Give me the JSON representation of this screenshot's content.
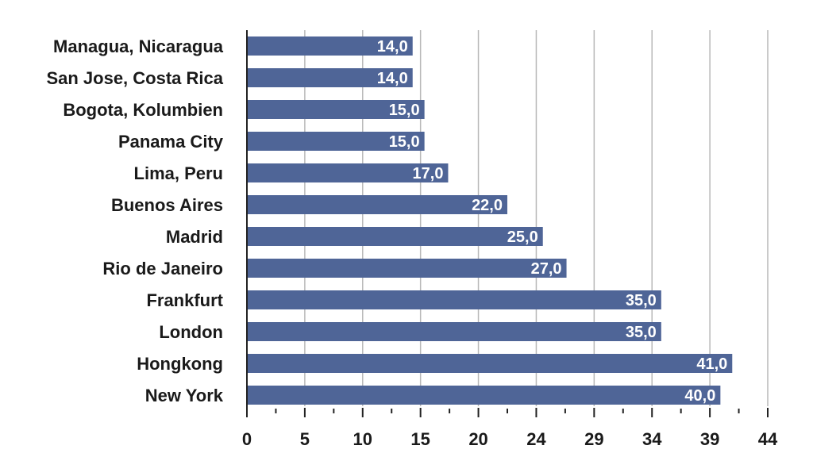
{
  "chart_data": {
    "type": "bar",
    "orientation": "horizontal",
    "categories": [
      "Managua, Nicaragua",
      "San Jose, Costa Rica",
      "Bogota, Kolumbien",
      "Panama City",
      "Lima, Peru",
      "Buenos Aires",
      "Madrid",
      "Rio de Janeiro",
      "Frankfurt",
      "London",
      "Hongkong",
      "New York"
    ],
    "values": [
      14.0,
      14.0,
      15.0,
      15.0,
      17.0,
      22.0,
      25.0,
      27.0,
      35.0,
      35.0,
      41.0,
      40.0
    ],
    "value_labels": [
      "14,0",
      "14,0",
      "15,0",
      "15,0",
      "17,0",
      "22,0",
      "25,0",
      "27,0",
      "35,0",
      "35,0",
      "41,0",
      "40,0"
    ],
    "x_tick_labels": [
      "0",
      "5",
      "10",
      "15",
      "20",
      "24",
      "29",
      "34",
      "39",
      "44"
    ],
    "xlim": [
      0,
      44
    ],
    "title": "",
    "xlabel": "",
    "ylabel": "",
    "grid": true,
    "bar_color": "#4f6597",
    "label_color": "#ffffff"
  }
}
